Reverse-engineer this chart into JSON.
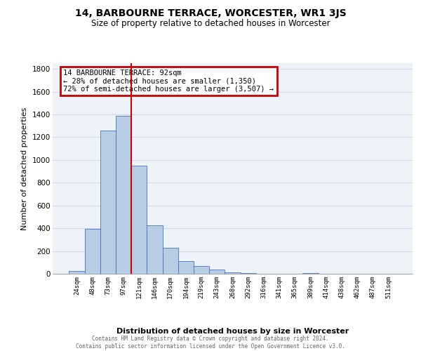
{
  "title": "14, BARBOURNE TERRACE, WORCESTER, WR1 3JS",
  "subtitle": "Size of property relative to detached houses in Worcester",
  "xlabel": "Distribution of detached houses by size in Worcester",
  "ylabel": "Number of detached properties",
  "categories": [
    "24sqm",
    "48sqm",
    "73sqm",
    "97sqm",
    "121sqm",
    "146sqm",
    "170sqm",
    "194sqm",
    "219sqm",
    "243sqm",
    "268sqm",
    "292sqm",
    "316sqm",
    "341sqm",
    "365sqm",
    "389sqm",
    "414sqm",
    "438sqm",
    "462sqm",
    "487sqm",
    "511sqm"
  ],
  "bar_values": [
    25,
    395,
    1260,
    1390,
    950,
    425,
    230,
    110,
    65,
    40,
    10,
    5,
    2,
    1,
    0,
    5,
    0,
    0,
    0,
    0,
    0
  ],
  "bar_color": "#b8cce4",
  "bar_edge_color": "#4472c4",
  "property_line_x": 3.5,
  "property_line_color": "#cc0000",
  "annotation_line1": "14 BARBOURNE TERRACE: 92sqm",
  "annotation_line2": "← 28% of detached houses are smaller (1,350)",
  "annotation_line3": "72% of semi-detached houses are larger (3,507) →",
  "annotation_box_color": "#cc0000",
  "ylim": [
    0,
    1850
  ],
  "yticks": [
    0,
    200,
    400,
    600,
    800,
    1000,
    1200,
    1400,
    1600,
    1800
  ],
  "grid_color": "#d0d8e8",
  "background_color": "#eef2f9",
  "footer_line1": "Contains HM Land Registry data © Crown copyright and database right 2024.",
  "footer_line2": "Contains public sector information licensed under the Open Government Licence v3.0."
}
